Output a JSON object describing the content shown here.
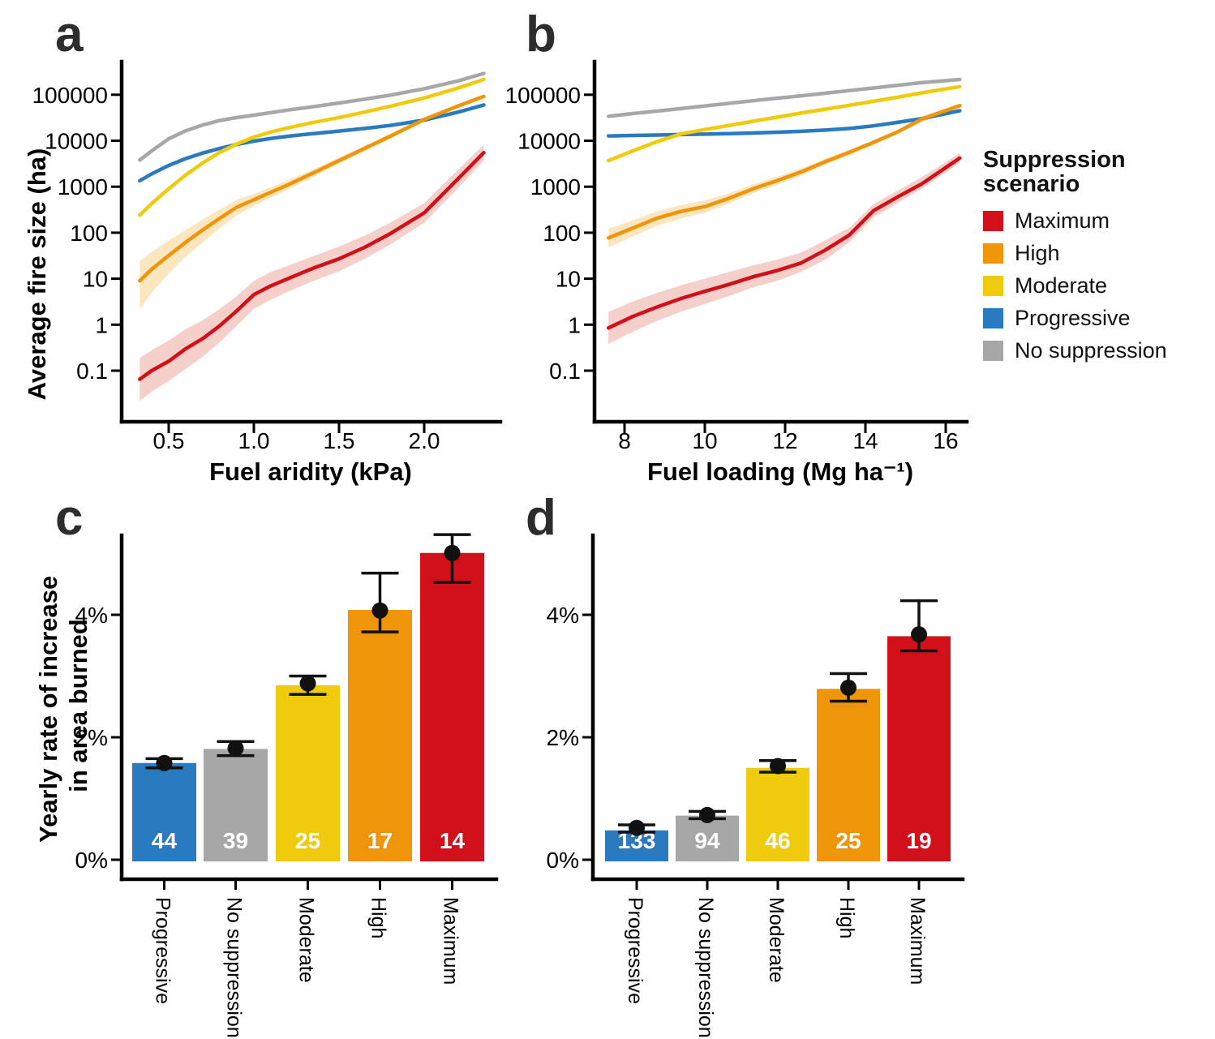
{
  "colors": {
    "maximum": "#d11019",
    "high": "#ef950a",
    "moderate": "#f0ca0d",
    "progressive": "#2a7abf",
    "no_suppression": "#a7a7a7",
    "maximum_band": "#f5cfca",
    "high_band": "#fce6c0",
    "axis": "#000000",
    "point": "#111111",
    "count_text": "#ffffff"
  },
  "legend": {
    "title": "Suppression scenario",
    "items": [
      {
        "label": "Maximum",
        "color": "#d11019"
      },
      {
        "label": "High",
        "color": "#ef950a"
      },
      {
        "label": "Moderate",
        "color": "#f0ca0d"
      },
      {
        "label": "Progressive",
        "color": "#2a7abf"
      },
      {
        "label": "No suppression",
        "color": "#a7a7a7"
      }
    ]
  },
  "chart_data": [
    {
      "id": "a",
      "letter": "a",
      "type": "line",
      "xlabel": "Fuel aridity (kPa)",
      "ylabel": "Average fire size (ha)",
      "y_scale": "log10",
      "x_domain": [
        0.33,
        2.35
      ],
      "y_domain": [
        0.02,
        320000
      ],
      "xticks": {
        "values": [
          0.5,
          1.0,
          1.5,
          2.0
        ],
        "labels": [
          "0.5",
          "1.0",
          "1.5",
          "2.0"
        ]
      },
      "yticks": {
        "values": [
          0.1,
          1,
          10,
          100,
          1000,
          10000,
          100000
        ],
        "labels": [
          "0.1",
          "1",
          "10",
          "100",
          "1000",
          "10000",
          "100000"
        ]
      },
      "x": [
        0.33,
        0.4,
        0.5,
        0.6,
        0.7,
        0.8,
        0.9,
        1.0,
        1.1,
        1.2,
        1.35,
        1.5,
        1.65,
        1.8,
        2.0,
        2.2,
        2.35
      ],
      "bands": [
        {
          "name": "High uncertainty band",
          "color": "#fce6c0",
          "lo": [
            2.2,
            5,
            13,
            30,
            62,
            125,
            240,
            380,
            580,
            870,
            1650,
            3150,
            5900,
            11000,
            26000,
            52000,
            85000
          ],
          "hi": [
            24,
            38,
            68,
            115,
            195,
            320,
            520,
            700,
            980,
            1380,
            2400,
            4300,
            7800,
            14200,
            32500,
            62500,
            100000
          ]
        },
        {
          "name": "Maximum uncertainty band",
          "color": "#f5cfca",
          "lo": [
            0.022,
            0.035,
            0.06,
            0.11,
            0.2,
            0.42,
            0.95,
            2.2,
            3.5,
            5.2,
            9,
            14.5,
            27,
            55,
            165,
            950,
            3700
          ],
          "hi": [
            0.19,
            0.28,
            0.45,
            0.8,
            1.25,
            2.2,
            4.2,
            9,
            14,
            19,
            31,
            50,
            86,
            165,
            440,
            2350,
            8200
          ]
        }
      ],
      "series": [
        {
          "name": "No suppression",
          "color": "#a7a7a7",
          "values": [
            3800,
            6000,
            11000,
            16500,
            22000,
            27500,
            32000,
            36000,
            41000,
            46500,
            55000,
            66000,
            80000,
            98000,
            135000,
            200000,
            290000
          ]
        },
        {
          "name": "Progressive",
          "color": "#2a7abf",
          "values": [
            1350,
            1900,
            2900,
            4100,
            5400,
            6800,
            8300,
            9800,
            11200,
            12500,
            14300,
            16200,
            18500,
            21500,
            28000,
            42000,
            60000
          ]
        },
        {
          "name": "Moderate",
          "color": "#f0ca0d",
          "values": [
            240,
            430,
            900,
            1800,
            3300,
            5600,
            8500,
            12000,
            15500,
            19000,
            25000,
            32000,
            42000,
            56000,
            85000,
            140000,
            215000
          ]
        },
        {
          "name": "High",
          "color": "#ef950a",
          "values": [
            9,
            16,
            32,
            62,
            115,
            205,
            360,
            520,
            760,
            1100,
            2000,
            3700,
            6800,
            12500,
            29000,
            57000,
            92000
          ]
        },
        {
          "name": "Maximum",
          "color": "#d11019",
          "values": [
            0.065,
            0.1,
            0.16,
            0.3,
            0.5,
            0.95,
            2.0,
            4.5,
            7,
            10,
            17,
            27,
            48,
            95,
            270,
            1500,
            5500
          ]
        }
      ]
    },
    {
      "id": "b",
      "letter": "b",
      "type": "line",
      "xlabel": "Fuel loading (Mg ha⁻¹)",
      "ylabel": "Average fire size (ha)",
      "y_scale": "log10",
      "x_domain": [
        7.6,
        16.35
      ],
      "y_domain": [
        0.02,
        320000
      ],
      "xticks": {
        "values": [
          8,
          10,
          12,
          14,
          16
        ],
        "labels": [
          "8",
          "10",
          "12",
          "14",
          "16"
        ]
      },
      "yticks": {
        "values": [
          0.1,
          1,
          10,
          100,
          1000,
          10000,
          100000
        ],
        "labels": [
          "0.1",
          "1",
          "10",
          "100",
          "1000",
          "10000",
          "100000"
        ]
      },
      "x": [
        7.6,
        8.2,
        8.8,
        9.4,
        10,
        10.6,
        11.2,
        11.8,
        12.4,
        13,
        13.6,
        14.2,
        14.8,
        15.4,
        16.35
      ],
      "bands": [
        {
          "name": "High uncertainty band",
          "color": "#fce6c0",
          "lo": [
            48,
            82,
            140,
            205,
            270,
            430,
            720,
            1100,
            1750,
            3000,
            4900,
            8200,
            14000,
            25000,
            54000
          ],
          "hi": [
            120,
            185,
            290,
            400,
            500,
            720,
            1120,
            1650,
            2500,
            4100,
            6400,
            10400,
            17300,
            34500,
            62500
          ]
        },
        {
          "name": "Maximum uncertainty band",
          "color": "#f5cfca",
          "lo": [
            0.38,
            0.7,
            1.2,
            1.9,
            2.8,
            4.2,
            6.5,
            9,
            14,
            26,
            62,
            215,
            440,
            900,
            3300
          ],
          "hi": [
            1.9,
            3.2,
            4.9,
            7.2,
            10,
            14,
            19.5,
            26,
            37,
            68,
            128,
            420,
            820,
            1600,
            5400
          ]
        }
      ],
      "series": [
        {
          "name": "No suppression",
          "color": "#a7a7a7",
          "values": [
            34000,
            39000,
            44000,
            50000,
            57000,
            65000,
            74000,
            84000,
            95000,
            108000,
            123000,
            140000,
            160000,
            183000,
            215000
          ]
        },
        {
          "name": "Progressive",
          "color": "#2a7abf",
          "values": [
            12700,
            13000,
            13300,
            13600,
            13900,
            14300,
            14700,
            15300,
            16000,
            17000,
            18500,
            21000,
            25000,
            30000,
            45000
          ]
        },
        {
          "name": "Moderate",
          "color": "#f0ca0d",
          "values": [
            3700,
            6000,
            9500,
            14000,
            17500,
            21500,
            26500,
            32500,
            40000,
            48500,
            59000,
            72000,
            88000,
            110000,
            150000
          ]
        },
        {
          "name": "High",
          "color": "#ef950a",
          "values": [
            77,
            125,
            205,
            290,
            370,
            560,
            900,
            1350,
            2100,
            3500,
            5600,
            9200,
            15500,
            29500,
            58000
          ]
        },
        {
          "name": "Maximum",
          "color": "#d11019",
          "values": [
            0.85,
            1.5,
            2.4,
            3.7,
            5.3,
            7.5,
            11,
            15,
            22,
            42,
            89,
            300,
            600,
            1150,
            4200
          ]
        }
      ]
    },
    {
      "id": "c",
      "letter": "c",
      "type": "bar",
      "ylabel_lines": [
        "Yearly rate of increase",
        "in area burned"
      ],
      "yticks": {
        "values": [
          0,
          2,
          4
        ],
        "labels": [
          "0%",
          "2%",
          "4%"
        ]
      },
      "categories": [
        "Progressive",
        "No suppression",
        "Moderate",
        "High",
        "Maximum"
      ],
      "colors": [
        "#2a7abf",
        "#a7a7a7",
        "#f0ca0d",
        "#ef950a",
        "#d11019"
      ],
      "values": [
        1.58,
        1.81,
        2.85,
        4.08,
        5.01
      ],
      "points": [
        1.58,
        1.82,
        2.88,
        4.07,
        5.01
      ],
      "err_lo": [
        1.5,
        1.7,
        2.7,
        3.72,
        4.53
      ],
      "err_hi": [
        1.65,
        1.93,
        3.0,
        4.68,
        5.31
      ],
      "counts": [
        "44",
        "39",
        "25",
        "17",
        "14"
      ]
    },
    {
      "id": "d",
      "letter": "d",
      "type": "bar",
      "ylabel_lines": [
        "",
        ""
      ],
      "yticks": {
        "values": [
          0,
          2,
          4
        ],
        "labels": [
          "0%",
          "2%",
          "4%"
        ]
      },
      "categories": [
        "Progressive",
        "No suppression",
        "Moderate",
        "High",
        "Maximum"
      ],
      "colors": [
        "#2a7abf",
        "#a7a7a7",
        "#f0ca0d",
        "#ef950a",
        "#d11019"
      ],
      "values": [
        0.48,
        0.72,
        1.5,
        2.79,
        3.65
      ],
      "points": [
        0.52,
        0.73,
        1.53,
        2.81,
        3.68
      ],
      "err_lo": [
        0.45,
        0.67,
        1.43,
        2.59,
        3.41
      ],
      "err_hi": [
        0.57,
        0.79,
        1.62,
        3.04,
        4.23
      ],
      "counts": [
        "133",
        "94",
        "46",
        "25",
        "19"
      ]
    }
  ]
}
